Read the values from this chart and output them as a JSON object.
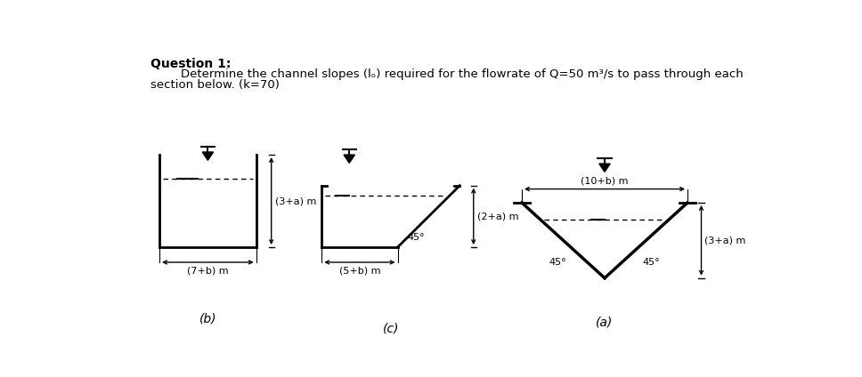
{
  "title_bold": "Question 1:",
  "subtitle_indent": "        Determine the channel slopes (lₒ) required for the flowrate of Q=50 m³/s to pass through each",
  "subtitle_line2": "section below. (k=70)",
  "bg_color": "#ffffff",
  "diagram_a_label": "(a)",
  "diagram_b_label": "(b)",
  "diagram_c_label": "(c)",
  "dim_a_top": "(10+b) m",
  "dim_a_depth": "(3+a) m",
  "dim_b_depth": "(3+a) m",
  "dim_b_width": "(7+b) m",
  "dim_c_depth": "(2+a) m",
  "dim_c_width": "(5+b) m",
  "angle_label": "45°",
  "line_color": "#000000",
  "text_color": "#000000",
  "lw_main": 2.0,
  "lw_dim": 1.0,
  "lw_water": 1.0
}
